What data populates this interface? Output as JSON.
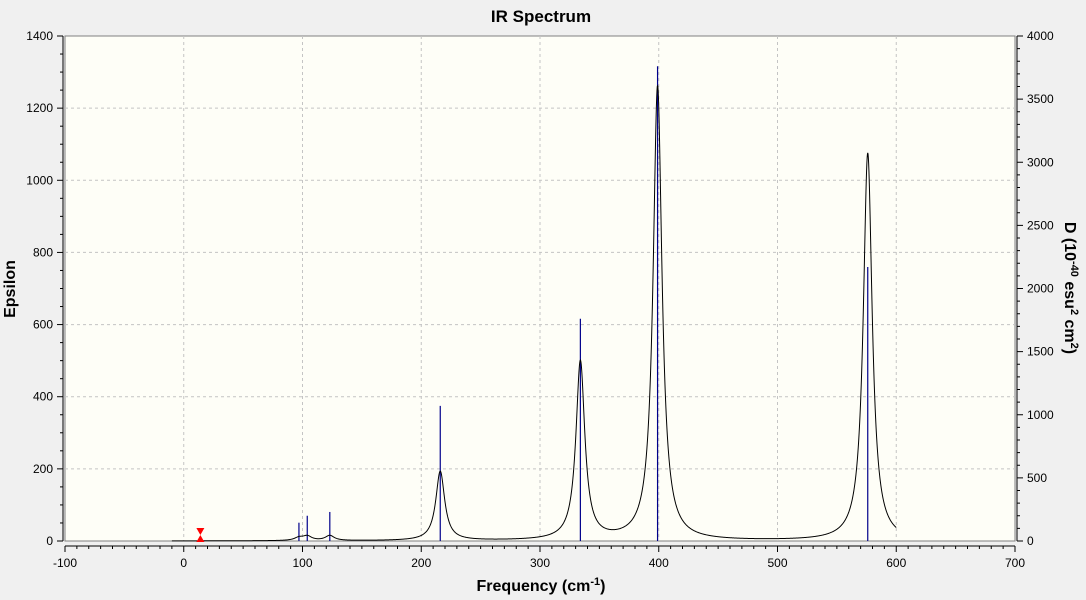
{
  "chart_data": {
    "type": "line",
    "title": "IR Spectrum",
    "xlabel": "Frequency (cm",
    "xlabel_sup": "-1",
    "xlabel_end": ")",
    "ylabel": "Epsilon",
    "y2label_parts": [
      "D (10",
      "-40",
      " esu",
      "2",
      " cm",
      "2",
      ")"
    ],
    "xlim": [
      -100,
      700
    ],
    "ylim": [
      0,
      1400
    ],
    "y2lim": [
      0,
      4000
    ],
    "xticks": [
      -100,
      0,
      100,
      200,
      300,
      400,
      500,
      600,
      700
    ],
    "yticks": [
      0,
      200,
      400,
      600,
      800,
      1000,
      1200,
      1400
    ],
    "y2ticks": [
      0,
      500,
      1000,
      1500,
      2000,
      2500,
      3000,
      3500,
      4000
    ],
    "grid": true,
    "background": "#fefef7",
    "line_color": "#000000",
    "stick_color": "#00008b",
    "marker_color": "#ff0000",
    "marker_x": 14,
    "spectrum_x_range": [
      -10,
      600
    ],
    "peaks": [
      {
        "x": 97,
        "epsilon": 8,
        "dipole": 145
      },
      {
        "x": 104,
        "epsilon": 12,
        "dipole": 200
      },
      {
        "x": 123,
        "epsilon": 14,
        "dipole": 230
      },
      {
        "x": 216,
        "epsilon": 192,
        "dipole": 1070
      },
      {
        "x": 334,
        "epsilon": 495,
        "dipole": 1760
      },
      {
        "x": 399,
        "epsilon": 1260,
        "dipole": 3760
      },
      {
        "x": 576,
        "epsilon": 1075,
        "dipole": 2170
      }
    ],
    "series": [
      {
        "type": "line",
        "values_ref": "peaks.epsilon"
      },
      {
        "type": "stick",
        "values_ref": "peaks.dipole"
      }
    ]
  }
}
